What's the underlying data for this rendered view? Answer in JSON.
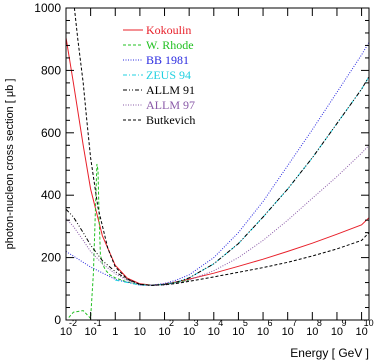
{
  "chart_data": {
    "type": "line",
    "xlabel": "Energy [ GeV ]",
    "ylabel": "photon-nucleon cross section [ μb ]",
    "xscale": "log",
    "xlim": [
      0.01,
      20000000000
    ],
    "ylim": [
      0,
      1000
    ],
    "y_ticks": [
      "0",
      "200",
      "400",
      "600",
      "800",
      "1000"
    ],
    "x_ticks": [
      {
        "base": "10",
        "exp": "-2"
      },
      {
        "base": "10",
        "exp": "-1"
      },
      {
        "base": "1",
        "exp": ""
      },
      {
        "base": "10",
        "exp": ""
      },
      {
        "base": "10",
        "exp": "2"
      },
      {
        "base": "10",
        "exp": "3"
      },
      {
        "base": "10",
        "exp": "4"
      },
      {
        "base": "10",
        "exp": "5"
      },
      {
        "base": "10",
        "exp": "6"
      },
      {
        "base": "10",
        "exp": "7"
      },
      {
        "base": "10",
        "exp": "8"
      },
      {
        "base": "10",
        "exp": "9"
      },
      {
        "base": "10",
        "exp": "10"
      }
    ],
    "legend_position": "top-center",
    "series": [
      {
        "name": "Kokoulin",
        "color": "#e8202a",
        "dash": "solid",
        "x": [
          0.01,
          0.02,
          0.05,
          0.1,
          0.3,
          1,
          3,
          10,
          30,
          100,
          300,
          1000,
          10000,
          100000,
          1000000,
          10000000,
          100000000,
          1000000000,
          10000000000,
          20000000000
        ],
        "y": [
          905,
          760,
          560,
          420,
          270,
          175,
          135,
          116,
          112,
          115,
          122,
          131,
          150,
          172,
          195,
          220,
          246,
          275,
          305,
          328
        ]
      },
      {
        "name": "W. Rhode",
        "color": "#22c022",
        "dash": "dashed",
        "x": [
          0.013,
          0.02,
          0.05,
          0.1,
          0.13,
          0.16,
          0.18,
          0.2,
          0.22,
          0.25,
          0.3,
          0.4,
          0.6,
          1,
          3,
          10,
          30,
          100,
          300,
          1000
        ],
        "y": [
          8,
          25,
          30,
          5,
          150,
          380,
          500,
          480,
          330,
          210,
          180,
          160,
          145,
          135,
          122,
          114,
          112,
          114,
          120,
          128
        ]
      },
      {
        "name": "BB 1981",
        "color": "#2a2ae0",
        "dash": "dotted",
        "x": [
          0.01,
          0.1,
          1,
          10,
          30,
          100,
          300,
          1000,
          10000,
          100000,
          1000000,
          10000000,
          100000000,
          1000000000,
          10000000000,
          20000000000
        ],
        "y": [
          220,
          170,
          130,
          112,
          112,
          117,
          128,
          145,
          200,
          280,
          380,
          495,
          610,
          730,
          850,
          890
        ]
      },
      {
        "name": "ZEUS 94",
        "color": "#20d0e0",
        "dash": "dashdot",
        "x": [
          1,
          10,
          30,
          100,
          300,
          1000,
          10000,
          100000,
          1000000,
          10000000,
          100000000,
          1000000000,
          10000000000,
          20000000000
        ],
        "y": [
          128,
          112,
          111,
          114,
          121,
          135,
          180,
          245,
          330,
          420,
          520,
          630,
          740,
          780
        ]
      },
      {
        "name": "ALLM 91",
        "color": "#000000",
        "dash": "dashdotdot",
        "x": [
          0.01,
          0.02,
          0.05,
          0.1,
          0.3,
          1,
          3,
          10,
          30,
          100,
          300,
          1000,
          10000,
          100000,
          1000000,
          10000000,
          100000000,
          1000000000,
          10000000000,
          20000000000
        ],
        "y": [
          355,
          330,
          280,
          240,
          190,
          155,
          130,
          114,
          111,
          114,
          121,
          135,
          180,
          245,
          330,
          420,
          520,
          630,
          740,
          780
        ]
      },
      {
        "name": "ALLM 97",
        "color": "#8a5aa8",
        "dash": "dotted",
        "x": [
          0.01,
          0.02,
          0.05,
          0.1,
          0.3,
          1,
          3,
          10,
          30,
          100,
          300,
          1000,
          10000,
          100000,
          1000000,
          10000000,
          100000000,
          1000000000,
          10000000000,
          20000000000
        ],
        "y": [
          325,
          300,
          255,
          220,
          180,
          148,
          128,
          113,
          111,
          112,
          118,
          128,
          158,
          200,
          255,
          320,
          390,
          460,
          535,
          560
        ]
      },
      {
        "name": "Butkevich",
        "color": "#000000",
        "dash": "dashed",
        "x": [
          0.022,
          0.03,
          0.05,
          0.07,
          0.1,
          0.2,
          0.5,
          1,
          3,
          10,
          30,
          100,
          300,
          1000,
          10000,
          100000,
          1000000,
          10000000,
          100000000,
          1000000000,
          10000000000,
          20000000000
        ],
        "y": [
          1000,
          900,
          760,
          640,
          520,
          360,
          230,
          170,
          132,
          114,
          111,
          113,
          117,
          124,
          138,
          153,
          168,
          185,
          205,
          228,
          255,
          280
        ]
      }
    ]
  }
}
